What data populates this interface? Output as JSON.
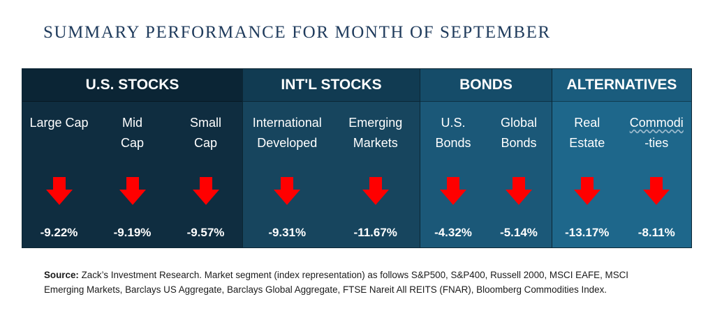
{
  "title": "SUMMARY PERFORMANCE FOR MONTH OF SEPTEMBER",
  "colors": {
    "arrow": "#ff0000",
    "text": "#ffffff"
  },
  "groups": [
    {
      "label": "U.S. STOCKS",
      "columns": [
        {
          "line1": "Large Cap",
          "line2": "",
          "icon": "down-arrow",
          "value": "-9.22%"
        },
        {
          "line1": "Mid",
          "line2": "Cap",
          "icon": "down-arrow",
          "value": "-9.19%"
        },
        {
          "line1": "Small",
          "line2": "Cap",
          "icon": "down-arrow",
          "value": "-9.57%"
        }
      ]
    },
    {
      "label": "INT'L STOCKS",
      "columns": [
        {
          "line1": "International",
          "line2": "Developed",
          "icon": "down-arrow",
          "value": "-9.31%"
        },
        {
          "line1": "Emerging",
          "line2": "Markets",
          "icon": "down-arrow",
          "value": "-11.67%"
        }
      ]
    },
    {
      "label": "BONDS",
      "columns": [
        {
          "line1": "U.S.",
          "line2": "Bonds",
          "icon": "down-arrow",
          "value": "-4.32%"
        },
        {
          "line1": "Global",
          "line2": "Bonds",
          "icon": "down-arrow",
          "value": "-5.14%"
        }
      ]
    },
    {
      "label": "ALTERNATIVES",
      "columns": [
        {
          "line1": "Real",
          "line2": "Estate",
          "icon": "down-arrow",
          "value": "-13.17%"
        },
        {
          "line1": "Commodi",
          "line2": "-ties",
          "icon": "down-arrow",
          "value": "-8.11%"
        }
      ]
    }
  ],
  "source": {
    "label": "Source:",
    "text": " Zack’s Investment Research. Market segment (index representation) as follows S&P500, S&P400, Russell 2000, MSCI EAFE, MSCI Emerging Markets, Barclays US Aggregate, Barclays Global Aggregate, FTSE Nareit All REITS (FNAR), Bloomberg Commodities Index."
  }
}
